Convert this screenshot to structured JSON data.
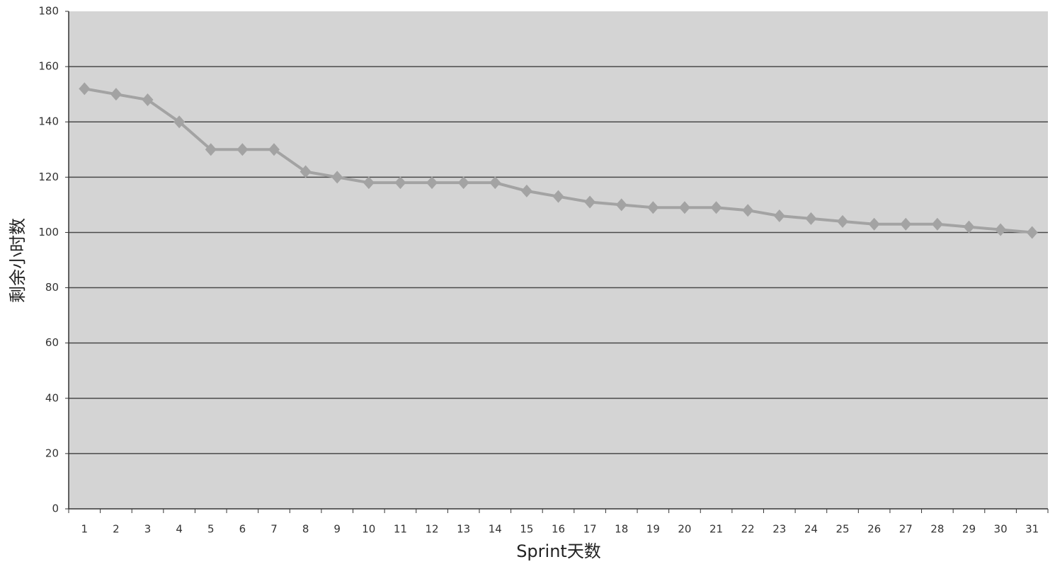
{
  "chart_data": {
    "type": "line",
    "x_label": "Sprint天数",
    "y_label": "剩余小时数",
    "categories": [
      1,
      2,
      3,
      4,
      5,
      6,
      7,
      8,
      9,
      10,
      11,
      12,
      13,
      14,
      15,
      16,
      17,
      18,
      19,
      20,
      21,
      22,
      23,
      24,
      25,
      26,
      27,
      28,
      29,
      30,
      31
    ],
    "values": [
      152,
      150,
      148,
      140,
      130,
      130,
      130,
      122,
      120,
      118,
      118,
      118,
      118,
      118,
      115,
      113,
      111,
      110,
      109,
      109,
      109,
      108,
      106,
      105,
      104,
      103,
      103,
      103,
      102,
      101,
      100
    ],
    "color": "#a3a3a3",
    "background": "#d4d4d4",
    "grid_color": "#4a4a4a",
    "ylim": [
      0,
      180
    ],
    "yticks": [
      0,
      20,
      40,
      60,
      80,
      100,
      120,
      140,
      160,
      180
    ],
    "grid": true
  }
}
